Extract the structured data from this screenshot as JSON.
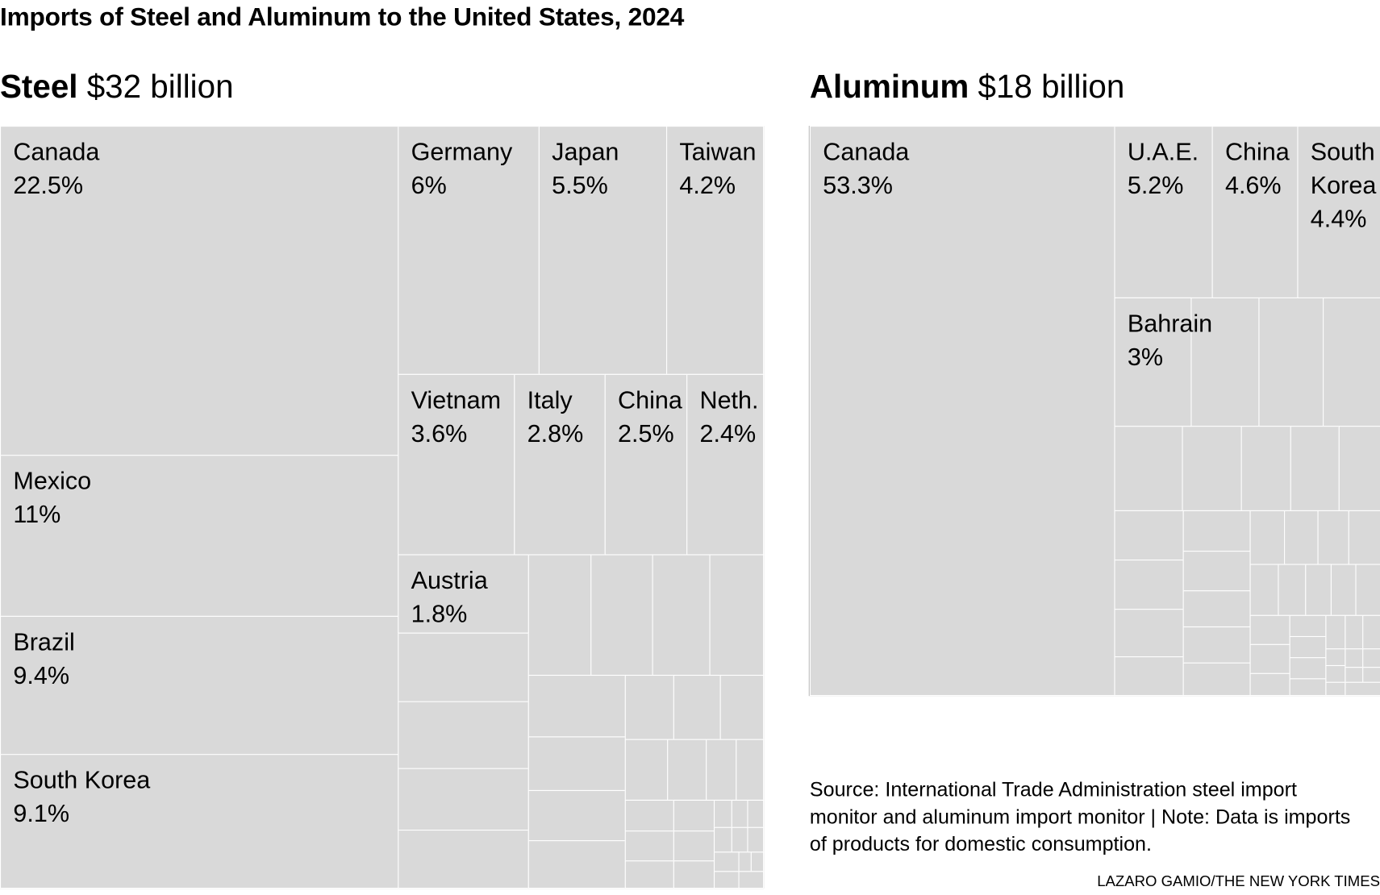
{
  "title": "Imports of Steel and Aluminum to the United States, 2024",
  "colors": {
    "cell": "#d9d9d9",
    "border": "#ffffff"
  },
  "chart_data": [
    {
      "type": "treemap",
      "metal": "Steel",
      "total": "$32 billion",
      "items": [
        {
          "label": "Canada",
          "value": "22.5%"
        },
        {
          "label": "Mexico",
          "value": "11%"
        },
        {
          "label": "Brazil",
          "value": "9.4%"
        },
        {
          "label": "South Korea",
          "value": "9.1%"
        },
        {
          "label": "Germany",
          "value": "6%"
        },
        {
          "label": "Japan",
          "value": "5.5%"
        },
        {
          "label": "Taiwan",
          "value": "4.2%"
        },
        {
          "label": "Vietnam",
          "value": "3.6%"
        },
        {
          "label": "Italy",
          "value": "2.8%"
        },
        {
          "label": "China",
          "value": "2.5%"
        },
        {
          "label": "Neth.",
          "value": "2.4%"
        },
        {
          "label": "Austria",
          "value": "1.8%"
        }
      ]
    },
    {
      "type": "treemap",
      "metal": "Aluminum",
      "total": "$18 billion",
      "items": [
        {
          "label": "Canada",
          "value": "53.3%"
        },
        {
          "label": "U.A.E.",
          "value": "5.2%"
        },
        {
          "label": "China",
          "value": "4.6%"
        },
        {
          "label": "South\nKorea",
          "value": "4.4%"
        },
        {
          "label": "Bahrain",
          "value": "3%"
        }
      ]
    }
  ],
  "source": "Source: International Trade Administration steel import monitor and aluminum import monitor | Note: Data is imports of products for domestic consumption.",
  "credit": "LAZARO GAMIO/THE NEW YORK TIMES"
}
